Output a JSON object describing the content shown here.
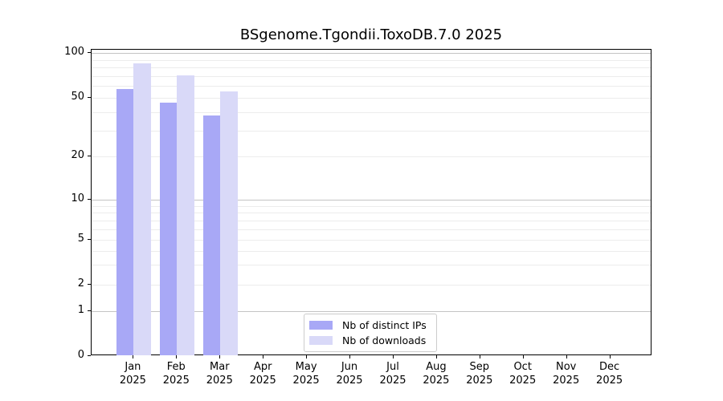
{
  "chart_data": {
    "type": "bar",
    "title": "BSgenome.Tgondii.ToxoDB.7.0 2025",
    "categories": [
      "Jan",
      "Feb",
      "Mar",
      "Apr",
      "May",
      "Jun",
      "Jul",
      "Aug",
      "Sep",
      "Oct",
      "Nov",
      "Dec"
    ],
    "year_label": "2025",
    "series": [
      {
        "name": "Nb of distinct IPs",
        "color": "#a8a8f6",
        "values": [
          57,
          46,
          38,
          0,
          0,
          0,
          0,
          0,
          0,
          0,
          0,
          0
        ]
      },
      {
        "name": "Nb of downloads",
        "color": "#d9d9f8",
        "values": [
          85,
          71,
          55,
          0,
          0,
          0,
          0,
          0,
          0,
          0,
          0,
          0
        ]
      }
    ],
    "y_axis": {
      "tick_labels": [
        0,
        1,
        2,
        5,
        10,
        20,
        50,
        100
      ],
      "scale": "log-like with linear 0-1 segment",
      "ylim": [
        0,
        105
      ]
    },
    "gridlines": {
      "major": [
        1,
        10,
        100
      ],
      "minor": [
        2,
        3,
        4,
        5,
        6,
        7,
        8,
        9,
        20,
        30,
        40,
        50,
        60,
        70,
        80,
        90
      ]
    },
    "legend": {
      "position": "bottom-center"
    }
  }
}
